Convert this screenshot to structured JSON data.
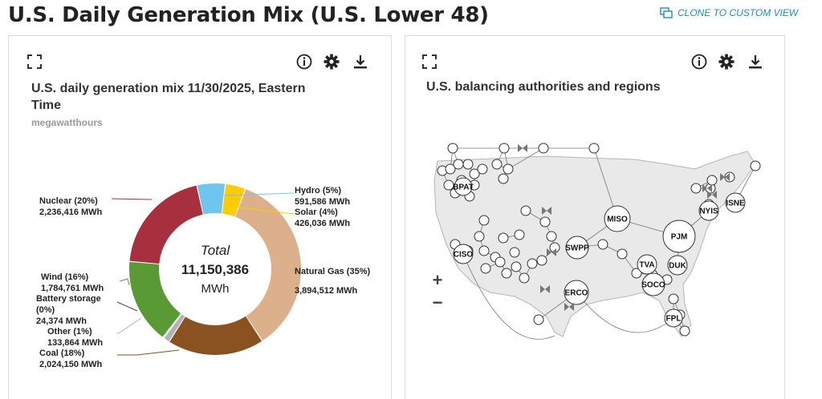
{
  "page": {
    "title": "U.S. Daily Generation Mix (U.S. Lower 48)",
    "clone_label": "CLONE TO CUSTOM VIEW"
  },
  "left_panel": {
    "title": "U.S. daily generation mix 11/30/2025, Eastern Time",
    "subtitle": "megawatthours",
    "total_label": "Total",
    "total_value": "11,150,386",
    "total_unit": "MWh",
    "icons": [
      "expand-icon",
      "info-icon",
      "gear-icon",
      "download-icon"
    ]
  },
  "chart_data": {
    "type": "pie",
    "title": "U.S. daily generation mix 11/30/2025, Eastern Time",
    "subtitle": "megawatthours",
    "total": 11150386,
    "slices": [
      {
        "name": "Hydro",
        "percent_label": "Hydro (5%)",
        "value": 591586,
        "value_label": "591,586 MWh",
        "color": "#6ec6ee"
      },
      {
        "name": "Solar",
        "percent_label": "Solar (4%)",
        "value": 426036,
        "value_label": "426,036 MWh",
        "color": "#ffcc00"
      },
      {
        "name": "Natural Gas",
        "percent_label": "Natural Gas (35%)",
        "value": 3894512,
        "value_label": "3,894,512 MWh",
        "color": "#dcb08a"
      },
      {
        "name": "Coal",
        "percent_label": "Coal (18%)",
        "value": 2024150,
        "value_label": "2,024,150 MWh",
        "color": "#8a5220"
      },
      {
        "name": "Other",
        "percent_label": "Other (1%)",
        "value": 133864,
        "value_label": "133,864 MWh",
        "color": "#b3b3b3"
      },
      {
        "name": "Battery storage",
        "percent_label": "Battery storage (0%)",
        "value": 24374,
        "value_label": "24,374 MWh",
        "color": "#4a4a4a"
      },
      {
        "name": "Wind",
        "percent_label": "Wind (16%)",
        "value": 1784761,
        "value_label": "1,784,761 MWh",
        "color": "#5a9a35"
      },
      {
        "name": "Nuclear",
        "percent_label": "Nuclear (20%)",
        "value": 2236416,
        "value_label": "2,236,416 MWh",
        "color": "#a8303e"
      }
    ]
  },
  "right_panel": {
    "title": "U.S. balancing authorities and regions",
    "zoom_in": "+",
    "zoom_out": "−",
    "node_labels": [
      "BPAT",
      "CISO",
      "SWPP",
      "ERCO",
      "MISO",
      "PJM",
      "TVA",
      "DUK",
      "SOCO",
      "FPL",
      "NYIS",
      "ISNE"
    ],
    "icons": [
      "expand-icon",
      "info-icon",
      "gear-icon",
      "download-icon"
    ]
  }
}
